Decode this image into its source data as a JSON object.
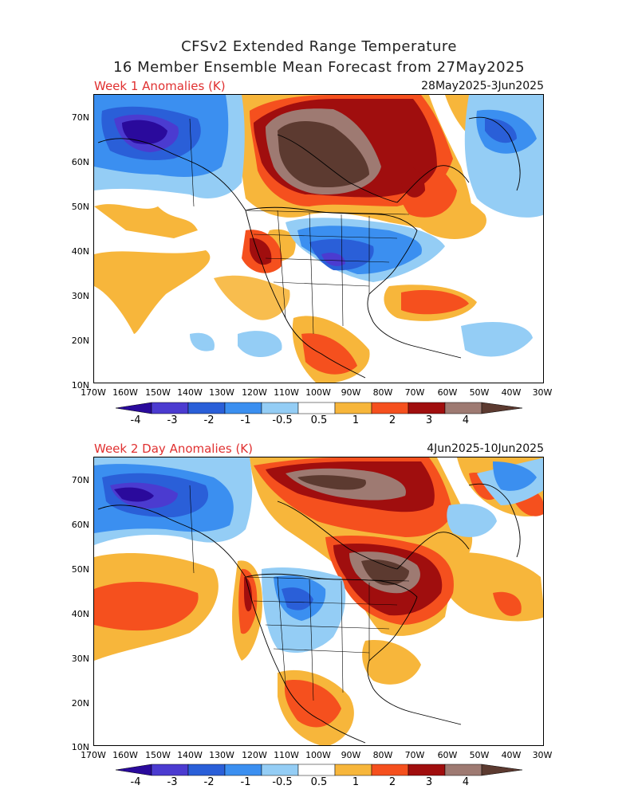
{
  "header": {
    "line1": "CFSv2 Extended Range Temperature",
    "line2": "16 Member Ensemble Mean Forecast from 27May2025"
  },
  "panels": [
    {
      "title": "Week 1 Anomalies (K)",
      "dates": "28May2025-3Jun2025"
    },
    {
      "title": "Week 2 Day Anomalies (K)",
      "dates": "4Jun2025-10Jun2025"
    }
  ],
  "axes": {
    "lat_labels": [
      "70N",
      "60N",
      "50N",
      "40N",
      "30N",
      "20N",
      "10N"
    ],
    "lon_labels": [
      "170W",
      "160W",
      "150W",
      "140W",
      "130W",
      "120W",
      "110W",
      "100W",
      "90W",
      "80W",
      "70W",
      "60W",
      "50W",
      "40W",
      "30W"
    ]
  },
  "colorbar": {
    "labels": [
      "-4",
      "-3",
      "-2",
      "-1",
      "-0.5",
      "0.5",
      "1",
      "2",
      "3",
      "4"
    ],
    "colors": [
      "#2a0a9c",
      "#4b3bd0",
      "#2a5fd8",
      "#3b8ff0",
      "#94cdf5",
      "#ffffff",
      "#f7b63b",
      "#f5501e",
      "#e8260f",
      "#a00e0e",
      "#9e7a72",
      "#5c3a30"
    ]
  }
}
